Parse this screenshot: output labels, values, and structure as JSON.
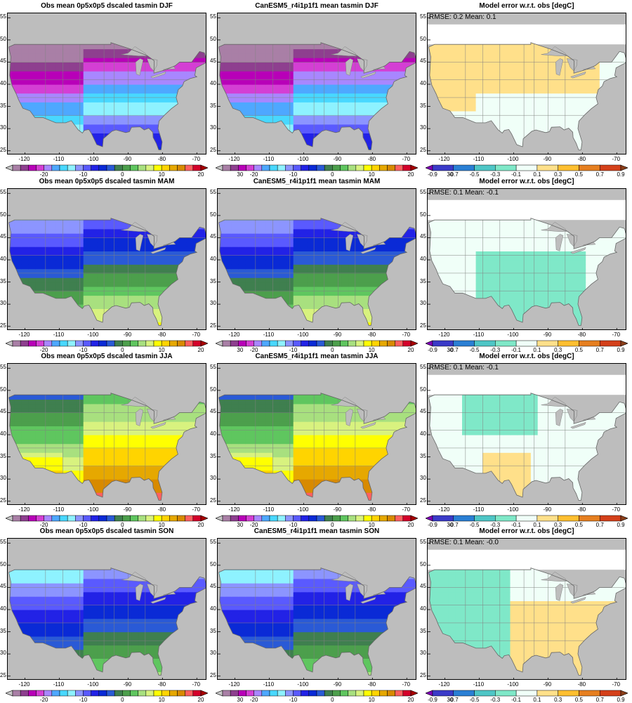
{
  "axes": {
    "lon_ticks": [
      "-120",
      "-110",
      "-100",
      "-90",
      "-80",
      "-70"
    ],
    "lat_ticks": [
      "25",
      "30",
      "35",
      "40",
      "45",
      "50",
      "55"
    ],
    "lon_range": [
      -125,
      -67
    ],
    "lat_range": [
      24,
      56
    ]
  },
  "colorbars": {
    "temperature": {
      "labels": [
        "-20",
        "-10",
        "0",
        "10",
        "20",
        "30"
      ],
      "colors": [
        "#c8c8c8",
        "#a97fa6",
        "#8e3f8f",
        "#b800b8",
        "#d43fd4",
        "#a887ff",
        "#4ea8ff",
        "#48d8ff",
        "#8ef2ff",
        "#8c95ff",
        "#5a5aff",
        "#2222e6",
        "#0a2ad6",
        "#2a5ad6",
        "#3f7f4f",
        "#4c9f4c",
        "#5fc65f",
        "#a8e07f",
        "#d8f27f",
        "#ffff00",
        "#ffd400",
        "#e6a800",
        "#d88a00",
        "#ff6060",
        "#d4002a",
        "#a80000"
      ]
    },
    "error": {
      "labels": [
        "-0.9",
        "-0.7",
        "-0.5",
        "-0.3",
        "-0.1",
        "0.1",
        "0.3",
        "0.5",
        "0.7",
        "0.9"
      ],
      "colors": [
        "#7f00b8",
        "#3a3ac8",
        "#2a7fd4",
        "#4ec6c6",
        "#7fe8c8",
        "#f0fff8",
        "#ffe08a",
        "#ffbf30",
        "#e67f20",
        "#d4401a",
        "#8c3f1a"
      ]
    }
  },
  "panels": [
    {
      "title": "Obs mean 0p5x0p5 dscaled tasmin DJF",
      "type": "temp",
      "season": "DJF"
    },
    {
      "title": "CanESM5_r4i1p1f1 mean tasmin DJF",
      "type": "temp",
      "season": "DJF"
    },
    {
      "title": "Model error w.r.t. obs [degC]",
      "type": "error",
      "season": "DJF",
      "stats": "RMSE: 0.2  Mean: 0.1"
    },
    {
      "title": "Obs mean 0p5x0p5 dscaled tasmin MAM",
      "type": "temp",
      "season": "MAM"
    },
    {
      "title": "CanESM5_r4i1p1f1 mean tasmin MAM",
      "type": "temp",
      "season": "MAM"
    },
    {
      "title": "Model error w.r.t. obs [degC]",
      "type": "error",
      "season": "MAM",
      "stats": "RMSE: 0.1  Mean: -0.1"
    },
    {
      "title": "Obs mean 0p5x0p5 dscaled tasmin JJA",
      "type": "temp",
      "season": "JJA"
    },
    {
      "title": "CanESM5_r4i1p1f1 mean tasmin JJA",
      "type": "temp",
      "season": "JJA"
    },
    {
      "title": "Model error w.r.t. obs [degC]",
      "type": "error",
      "season": "JJA",
      "stats": "RMSE: 0.1  Mean: -0.1"
    },
    {
      "title": "Obs mean 0p5x0p5 dscaled tasmin SON",
      "type": "temp",
      "season": "SON"
    },
    {
      "title": "CanESM5_r4i1p1f1 mean tasmin SON",
      "type": "temp",
      "season": "SON"
    },
    {
      "title": "Model error w.r.t. obs [degC]",
      "type": "error",
      "season": "SON",
      "stats": "RMSE: 0.1  Mean: -0.0"
    }
  ]
}
